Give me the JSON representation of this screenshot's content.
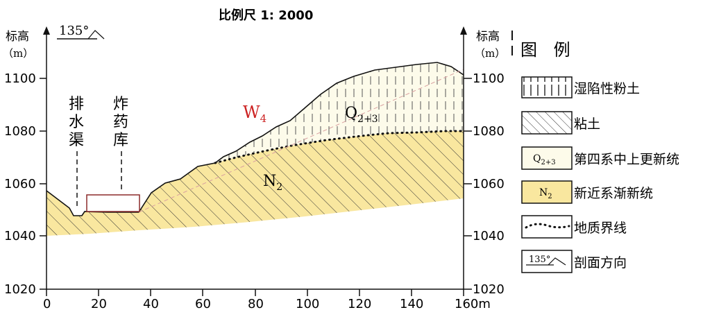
{
  "title": "比例尺 1: 2000",
  "direction_angle": "135°",
  "left_axis": {
    "label_line1": "标高",
    "label_line2": "（m）",
    "ticks": [
      "1100",
      "1080",
      "1060",
      "1040",
      "1020"
    ]
  },
  "right_axis": {
    "label_line1": "标高",
    "label_line2": "（m）",
    "ticks": [
      "1100",
      "1080",
      "1060",
      "1040",
      "1020"
    ]
  },
  "x_axis": {
    "ticks": [
      "0",
      "20",
      "40",
      "60",
      "80",
      "100",
      "120",
      "140",
      "160m"
    ]
  },
  "annotations": {
    "drain": [
      "排",
      "水",
      "渠"
    ],
    "depot": [
      "炸",
      "药",
      "库"
    ],
    "w4_main": "W",
    "w4_sub": "4",
    "q_main": "Q",
    "q_sub": "2+3",
    "n_main": "N",
    "n_sub": "2"
  },
  "legend": {
    "title": "图 例",
    "items": [
      {
        "key": "collapsible-loess",
        "label": "湿陷性粉土"
      },
      {
        "key": "clay",
        "label": "粘土"
      },
      {
        "key": "quaternary",
        "label": "第四系中上更新统",
        "symbol_main": "Q",
        "symbol_sub": "2+3"
      },
      {
        "key": "neogene",
        "label": "新近系渐新统",
        "symbol_main": "N",
        "symbol_sub": "2"
      },
      {
        "key": "boundary",
        "label": "地质界线"
      },
      {
        "key": "direction",
        "label": "剖面方向",
        "symbol_text": "135°"
      }
    ]
  },
  "colors": {
    "neogene_fill": "#f9e79f",
    "quaternary_fill": "#fdfbea",
    "w4_label": "#cc2222",
    "depot_outline": "#8b2a2a",
    "guide_line": "#d9a0a0"
  }
}
